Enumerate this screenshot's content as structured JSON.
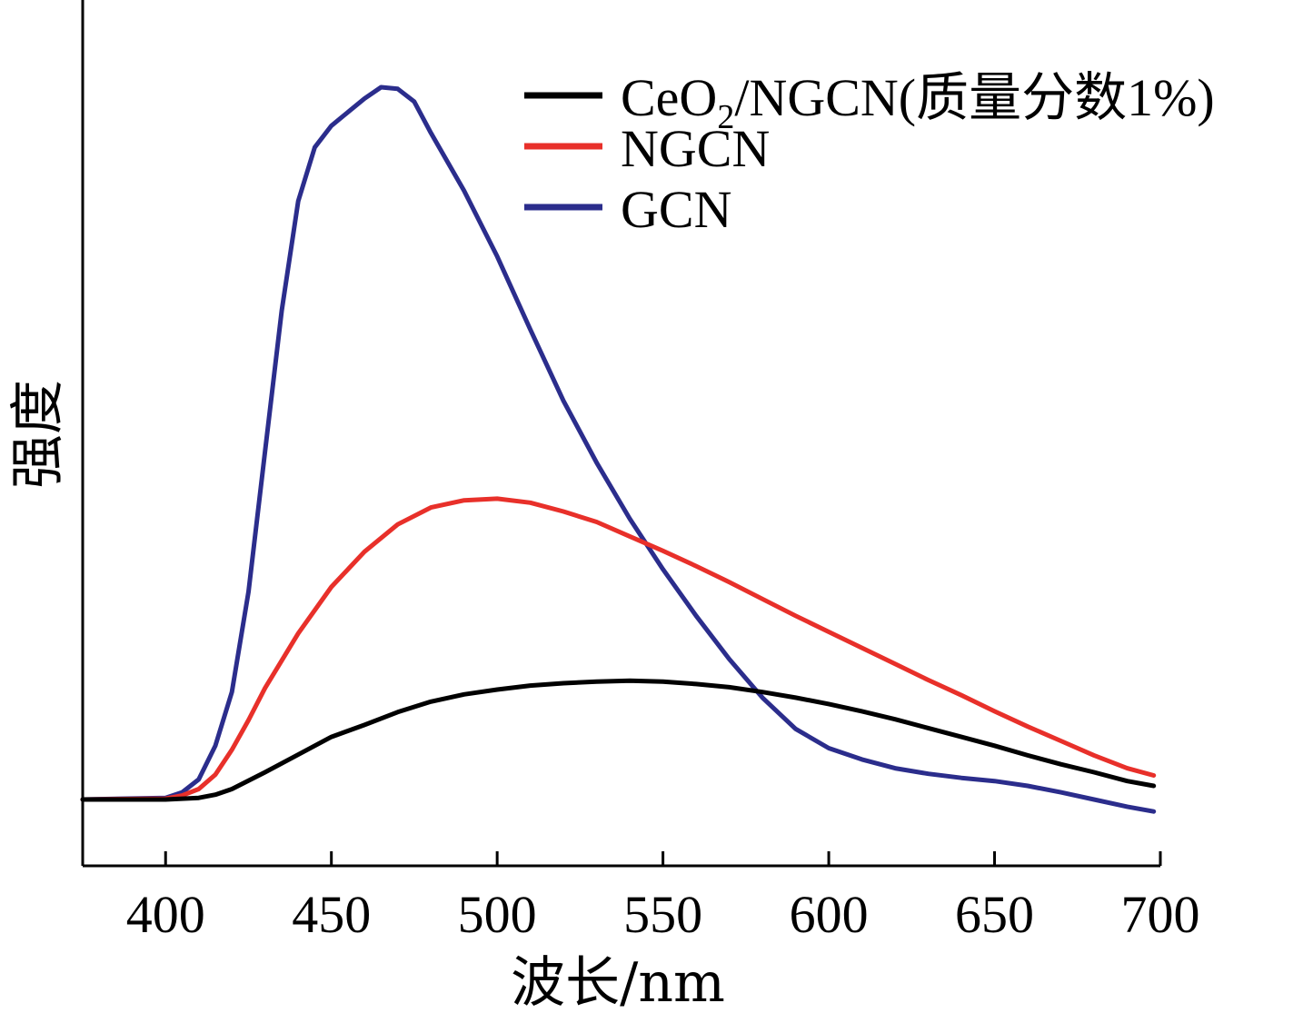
{
  "chart_data": {
    "type": "line",
    "xlabel": "波长/nm",
    "ylabel": "强度",
    "xlim": [
      375,
      700
    ],
    "ylim": [
      0,
      100
    ],
    "xticks": [
      400,
      450,
      500,
      550,
      600,
      650,
      700
    ],
    "yticks": [],
    "grid": false,
    "legend_position": "top-right",
    "series": [
      {
        "name": "CeO2/NGCN(质量分数1%)",
        "legend_main": "CeO",
        "legend_sub": "2",
        "legend_rest": "/NGCN(质量分数1%)",
        "color": "#000000",
        "x": [
          375,
          400,
          410,
          415,
          420,
          430,
          440,
          450,
          460,
          470,
          480,
          490,
          500,
          510,
          520,
          530,
          540,
          550,
          560,
          570,
          580,
          590,
          600,
          610,
          620,
          630,
          640,
          650,
          660,
          670,
          680,
          690,
          698
        ],
        "y": [
          7.9,
          7.9,
          8.1,
          8.5,
          9.2,
          11.3,
          13.5,
          15.7,
          17.2,
          18.8,
          20.1,
          21.0,
          21.6,
          22.1,
          22.4,
          22.6,
          22.7,
          22.6,
          22.3,
          21.9,
          21.3,
          20.6,
          19.8,
          18.9,
          17.9,
          16.8,
          15.7,
          14.6,
          13.4,
          12.3,
          11.3,
          10.2,
          9.6
        ]
      },
      {
        "name": "NGCN",
        "color": "#e8302a",
        "x": [
          375,
          400,
          405,
          410,
          415,
          420,
          425,
          430,
          440,
          450,
          460,
          470,
          480,
          490,
          500,
          510,
          520,
          530,
          540,
          550,
          560,
          570,
          580,
          590,
          600,
          610,
          620,
          630,
          640,
          650,
          660,
          670,
          680,
          690,
          698
        ],
        "y": [
          7.9,
          8.0,
          8.4,
          9.2,
          11.0,
          14.1,
          17.8,
          21.8,
          28.6,
          34.4,
          38.8,
          42.2,
          44.3,
          45.2,
          45.4,
          44.9,
          43.8,
          42.5,
          40.7,
          38.9,
          37.0,
          35.0,
          32.9,
          30.8,
          28.8,
          26.8,
          24.8,
          22.8,
          20.9,
          18.9,
          17.0,
          15.2,
          13.4,
          11.8,
          10.9
        ]
      },
      {
        "name": "GCN",
        "color": "#2b2d8c",
        "x": [
          375,
          400,
          405,
          410,
          415,
          420,
          425,
          430,
          435,
          440,
          445,
          450,
          460,
          465,
          470,
          475,
          480,
          490,
          500,
          510,
          520,
          530,
          540,
          550,
          560,
          570,
          580,
          590,
          600,
          610,
          620,
          630,
          640,
          650,
          660,
          670,
          680,
          690,
          698
        ],
        "y": [
          7.9,
          8.1,
          8.8,
          10.4,
          14.6,
          21.3,
          33.8,
          51.3,
          68.8,
          82.5,
          89.2,
          91.9,
          95.3,
          96.7,
          96.5,
          94.9,
          91.0,
          83.8,
          75.6,
          66.5,
          57.6,
          49.9,
          42.9,
          36.6,
          30.8,
          25.4,
          20.6,
          16.7,
          14.3,
          12.9,
          11.8,
          11.1,
          10.6,
          10.2,
          9.6,
          8.8,
          7.9,
          7.0,
          6.4
        ]
      }
    ]
  }
}
